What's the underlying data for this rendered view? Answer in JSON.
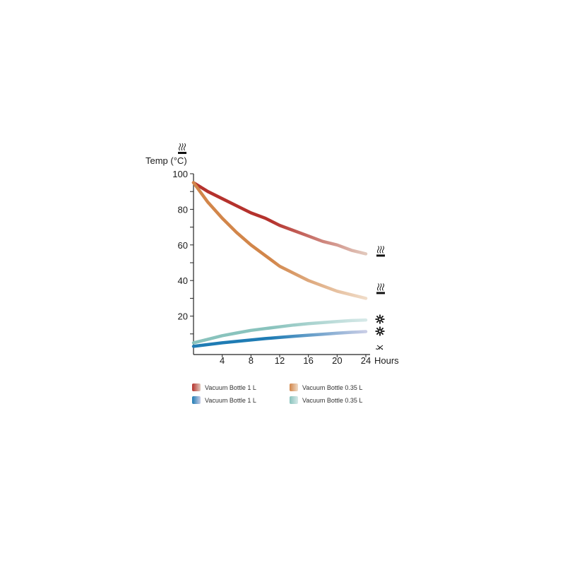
{
  "chart_data": {
    "type": "line",
    "ylabel": "Temp (°C)",
    "xlabel": "Hours",
    "xlim": [
      0,
      24
    ],
    "ylim": [
      0,
      100
    ],
    "x_ticks": [
      4,
      8,
      12,
      16,
      20,
      24
    ],
    "y_ticks": [
      20,
      40,
      60,
      80,
      100
    ],
    "grid": false,
    "legend_position": "bottom",
    "end_markers": {
      "hot": "steam-icon",
      "cold": "snowflake-icon",
      "base": "dot-icon"
    },
    "series": [
      {
        "name": "Vacuum Bottle 1 L",
        "kind": "hot",
        "color": "#b5322d",
        "fade_color": "#e2c9bd",
        "x": [
          0,
          2,
          4,
          6,
          8,
          10,
          12,
          14,
          16,
          18,
          20,
          22,
          24
        ],
        "y": [
          95,
          90,
          86,
          82,
          78,
          75,
          71,
          68,
          65,
          62,
          60,
          57,
          55
        ]
      },
      {
        "name": "Vacuum Bottle 0.35 L",
        "kind": "hot",
        "color": "#d2864a",
        "fade_color": "#f0dcc8",
        "x": [
          0,
          2,
          4,
          6,
          8,
          10,
          12,
          14,
          16,
          18,
          20,
          22,
          24
        ],
        "y": [
          95,
          84,
          75,
          67,
          60,
          54,
          48,
          44,
          40,
          37,
          34,
          32,
          30
        ]
      },
      {
        "name": "Vacuum Bottle 1 L",
        "kind": "cold",
        "color": "#1f7cb4",
        "fade_color": "#c9cde6",
        "x": [
          0,
          2,
          4,
          6,
          8,
          10,
          12,
          14,
          16,
          18,
          20,
          22,
          24
        ],
        "y": [
          3,
          4,
          5,
          5.8,
          6.6,
          7.4,
          8,
          8.7,
          9.3,
          9.8,
          10.4,
          10.9,
          11.3
        ]
      },
      {
        "name": "Vacuum Bottle 0.35 L",
        "kind": "cold",
        "color": "#89c3bd",
        "fade_color": "#d6e9e8",
        "x": [
          0,
          2,
          4,
          6,
          8,
          10,
          12,
          14,
          16,
          18,
          20,
          22,
          24
        ],
        "y": [
          5,
          7,
          9,
          10.5,
          12,
          13,
          14,
          15,
          15.8,
          16.4,
          17,
          17.5,
          17.8
        ]
      }
    ]
  }
}
